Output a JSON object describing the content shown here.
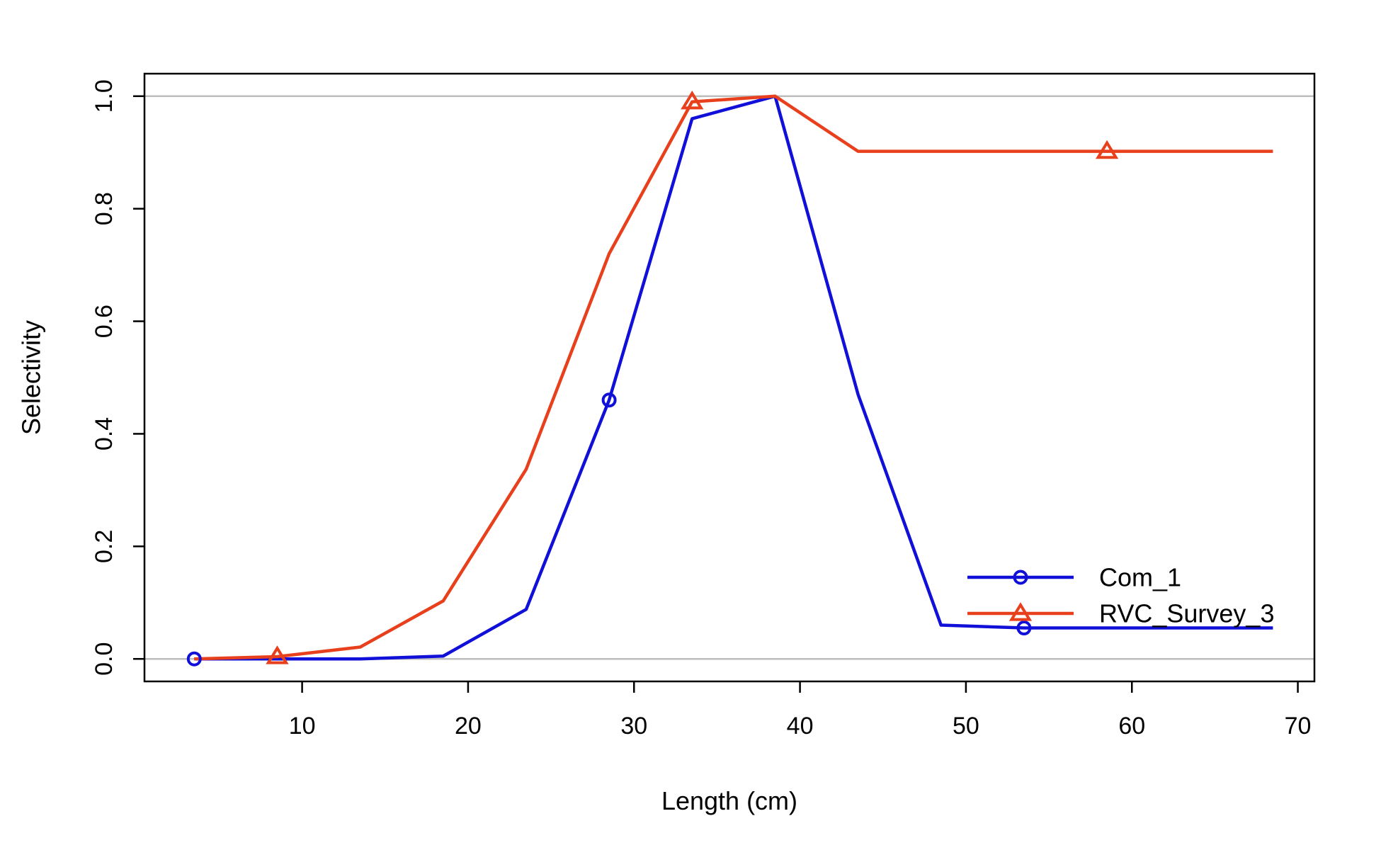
{
  "chart_data": {
    "type": "line",
    "title": "",
    "xlabel": "Length (cm)",
    "ylabel": "Selectivity",
    "xlim": [
      0.5,
      71
    ],
    "ylim": [
      -0.04,
      1.04
    ],
    "xticks": [
      10,
      20,
      30,
      40,
      50,
      60,
      70
    ],
    "xtick_labels": [
      "10",
      "20",
      "30",
      "40",
      "50",
      "60",
      "70"
    ],
    "yticks": [
      0.0,
      0.2,
      0.4,
      0.6,
      0.8,
      1.0
    ],
    "ytick_labels": [
      "0.0",
      "0.2",
      "0.4",
      "0.6",
      "0.8",
      "1.0"
    ],
    "reference_lines": [
      0,
      1
    ],
    "legend_position": "bottom-right",
    "x": [
      3.5,
      8.5,
      13.5,
      18.5,
      23.5,
      28.5,
      33.5,
      38.5,
      43.5,
      48.5,
      53.5,
      58.5,
      63.5,
      68.5
    ],
    "series": [
      {
        "name": "Com_1",
        "color": "#1010d8",
        "marker": "circle",
        "marker_x": [
          3.5,
          28.5,
          53.5
        ],
        "values": [
          0.0,
          0.0,
          0.0,
          0.005,
          0.088,
          0.46,
          0.96,
          1.0,
          0.47,
          0.06,
          0.055,
          0.055,
          0.055,
          0.055
        ]
      },
      {
        "name": "RVC_Survey_3",
        "color": "#e8401c",
        "marker": "triangle",
        "marker_x": [
          8.5,
          33.5,
          58.5
        ],
        "values": [
          0.0,
          0.004,
          0.021,
          0.103,
          0.337,
          0.72,
          0.99,
          1.0,
          0.902,
          0.902,
          0.902,
          0.902,
          0.902,
          0.902
        ]
      }
    ]
  }
}
